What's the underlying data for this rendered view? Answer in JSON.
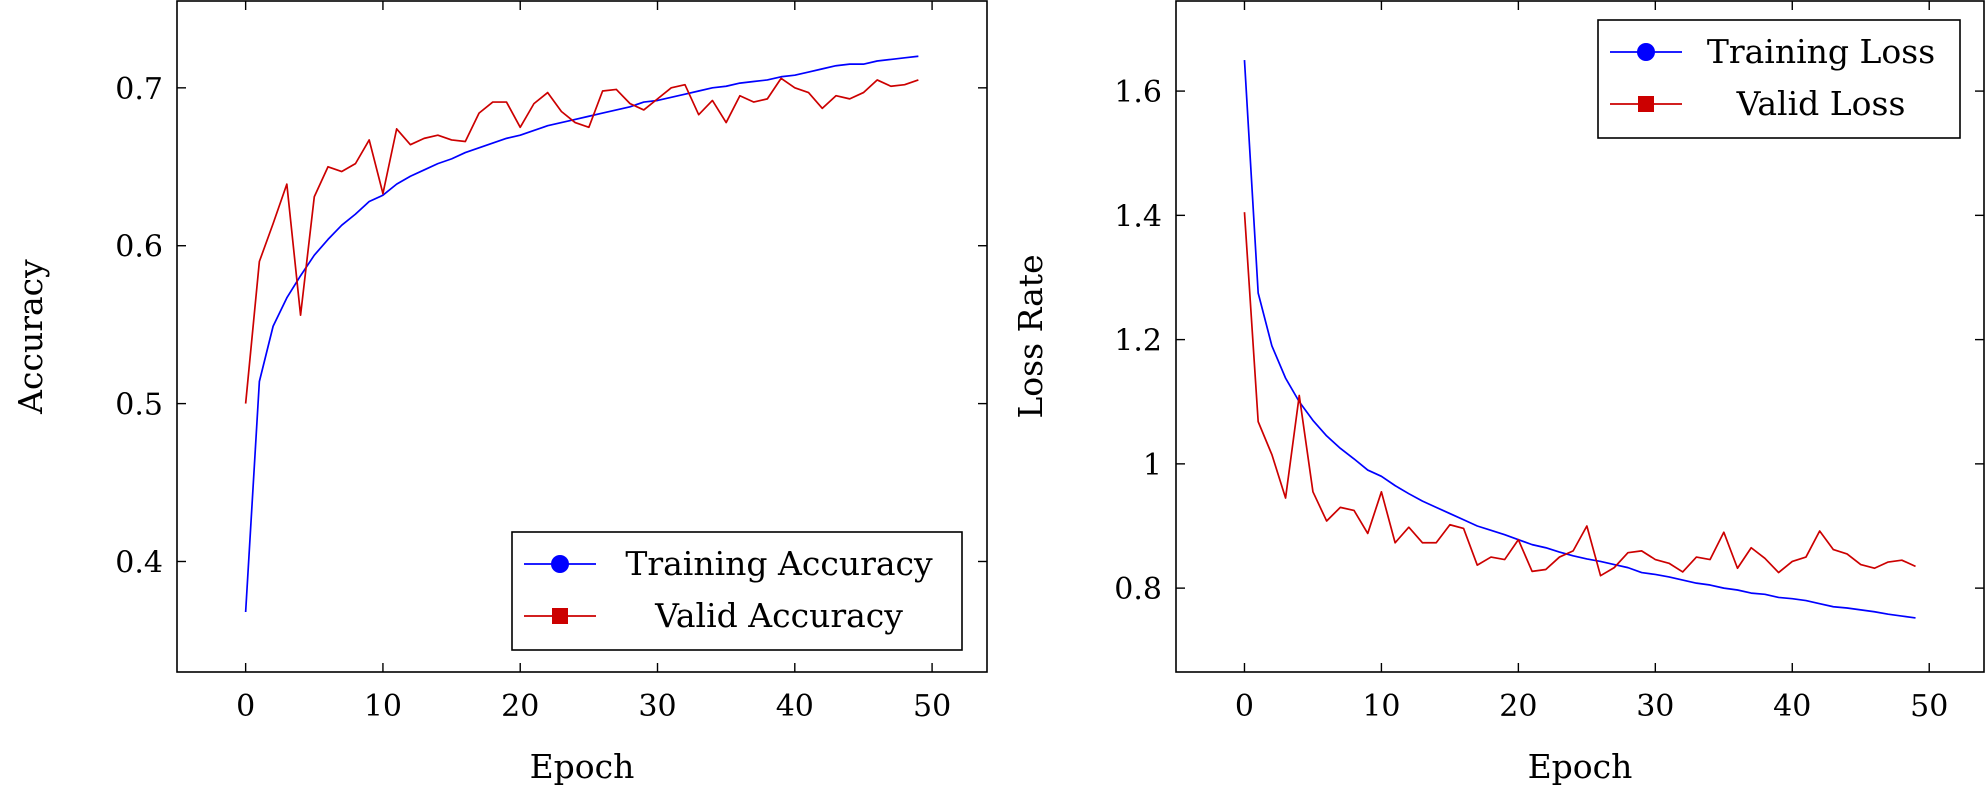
{
  "chart_data": [
    {
      "type": "line",
      "title": "",
      "xlabel": "Epoch",
      "ylabel": "Accuracy",
      "xlim": [
        -5,
        54
      ],
      "ylim": [
        0.33,
        0.755
      ],
      "xticks": [
        0,
        10,
        20,
        30,
        40,
        50
      ],
      "yticks": [
        0.4,
        0.5,
        0.6,
        0.7
      ],
      "tick_labels_x": [
        "0",
        "10",
        "20",
        "30",
        "40",
        "50"
      ],
      "tick_labels_y": [
        "0.4",
        "0.5",
        "0.6",
        "0.7"
      ],
      "grid": false,
      "legend_position": "bottom-right",
      "series": [
        {
          "name": "Training Accuracy",
          "color": "#0000ff",
          "marker": "circle",
          "x": [
            0,
            1,
            2,
            3,
            4,
            5,
            6,
            7,
            8,
            9,
            10,
            11,
            12,
            13,
            14,
            15,
            16,
            17,
            18,
            19,
            20,
            21,
            22,
            23,
            24,
            25,
            26,
            27,
            28,
            29,
            30,
            31,
            32,
            33,
            34,
            35,
            36,
            37,
            38,
            39,
            40,
            41,
            42,
            43,
            44,
            45,
            46,
            47,
            48,
            49
          ],
          "y": [
            0.368,
            0.514,
            0.549,
            0.567,
            0.581,
            0.594,
            0.604,
            0.613,
            0.62,
            0.628,
            0.632,
            0.639,
            0.644,
            0.648,
            0.652,
            0.655,
            0.659,
            0.662,
            0.665,
            0.668,
            0.67,
            0.673,
            0.676,
            0.678,
            0.68,
            0.682,
            0.684,
            0.686,
            0.688,
            0.691,
            0.692,
            0.694,
            0.696,
            0.698,
            0.7,
            0.701,
            0.703,
            0.704,
            0.705,
            0.707,
            0.708,
            0.71,
            0.712,
            0.714,
            0.715,
            0.715,
            0.717,
            0.718,
            0.719,
            0.72
          ]
        },
        {
          "name": "Valid Accuracy",
          "color": "#cc0000",
          "marker": "square",
          "x": [
            0,
            1,
            2,
            3,
            4,
            5,
            6,
            7,
            8,
            9,
            10,
            11,
            12,
            13,
            14,
            15,
            16,
            17,
            18,
            19,
            20,
            21,
            22,
            23,
            24,
            25,
            26,
            27,
            28,
            29,
            30,
            31,
            32,
            33,
            34,
            35,
            36,
            37,
            38,
            39,
            40,
            41,
            42,
            43,
            44,
            45,
            46,
            47,
            48,
            49
          ],
          "y": [
            0.5,
            0.59,
            0.614,
            0.639,
            0.556,
            0.631,
            0.65,
            0.647,
            0.652,
            0.667,
            0.633,
            0.674,
            0.664,
            0.668,
            0.67,
            0.667,
            0.666,
            0.684,
            0.691,
            0.691,
            0.675,
            0.69,
            0.697,
            0.685,
            0.678,
            0.675,
            0.698,
            0.699,
            0.69,
            0.686,
            0.693,
            0.7,
            0.702,
            0.683,
            0.692,
            0.678,
            0.695,
            0.691,
            0.693,
            0.706,
            0.7,
            0.697,
            0.687,
            0.695,
            0.693,
            0.697,
            0.705,
            0.701,
            0.702,
            0.705
          ]
        }
      ]
    },
    {
      "type": "line",
      "title": "",
      "xlabel": "Epoch",
      "ylabel": "Loss Rate",
      "xlim": [
        -5,
        54
      ],
      "ylim": [
        0.665,
        1.745
      ],
      "xticks": [
        0,
        10,
        20,
        30,
        40,
        50
      ],
      "yticks": [
        0.8,
        1.0,
        1.2,
        1.4,
        1.6
      ],
      "tick_labels_x": [
        "0",
        "10",
        "20",
        "30",
        "40",
        "50"
      ],
      "tick_labels_y": [
        "0.8",
        "1",
        "1.2",
        "1.4",
        "1.6"
      ],
      "grid": false,
      "legend_position": "top-right",
      "series": [
        {
          "name": "Training Loss",
          "color": "#0000ff",
          "marker": "circle",
          "x": [
            0,
            1,
            2,
            3,
            4,
            5,
            6,
            7,
            8,
            9,
            10,
            11,
            12,
            13,
            14,
            15,
            16,
            17,
            18,
            19,
            20,
            21,
            22,
            23,
            24,
            25,
            26,
            27,
            28,
            29,
            30,
            31,
            32,
            33,
            34,
            35,
            36,
            37,
            38,
            39,
            40,
            41,
            42,
            43,
            44,
            45,
            46,
            47,
            48,
            49
          ],
          "y": [
            1.65,
            1.275,
            1.19,
            1.138,
            1.1,
            1.07,
            1.045,
            1.025,
            1.008,
            0.99,
            0.98,
            0.965,
            0.952,
            0.94,
            0.93,
            0.92,
            0.91,
            0.9,
            0.893,
            0.886,
            0.878,
            0.87,
            0.865,
            0.858,
            0.852,
            0.847,
            0.843,
            0.838,
            0.833,
            0.825,
            0.822,
            0.818,
            0.813,
            0.808,
            0.805,
            0.8,
            0.797,
            0.792,
            0.79,
            0.785,
            0.783,
            0.78,
            0.775,
            0.77,
            0.768,
            0.765,
            0.762,
            0.758,
            0.755,
            0.752
          ]
        },
        {
          "name": "Valid Loss",
          "color": "#cc0000",
          "marker": "square",
          "x": [
            0,
            1,
            2,
            3,
            4,
            5,
            6,
            7,
            8,
            9,
            10,
            11,
            12,
            13,
            14,
            15,
            16,
            17,
            18,
            19,
            20,
            21,
            22,
            23,
            24,
            25,
            26,
            27,
            28,
            29,
            30,
            31,
            32,
            33,
            34,
            35,
            36,
            37,
            38,
            39,
            40,
            41,
            42,
            43,
            44,
            45,
            46,
            47,
            48,
            49
          ],
          "y": [
            1.405,
            1.068,
            1.015,
            0.945,
            1.11,
            0.955,
            0.908,
            0.93,
            0.925,
            0.888,
            0.955,
            0.873,
            0.898,
            0.873,
            0.873,
            0.902,
            0.896,
            0.837,
            0.85,
            0.846,
            0.878,
            0.827,
            0.83,
            0.85,
            0.86,
            0.9,
            0.82,
            0.833,
            0.857,
            0.86,
            0.846,
            0.84,
            0.826,
            0.85,
            0.846,
            0.89,
            0.832,
            0.865,
            0.848,
            0.825,
            0.843,
            0.85,
            0.892,
            0.862,
            0.855,
            0.838,
            0.832,
            0.842,
            0.845,
            0.835
          ]
        }
      ]
    }
  ]
}
